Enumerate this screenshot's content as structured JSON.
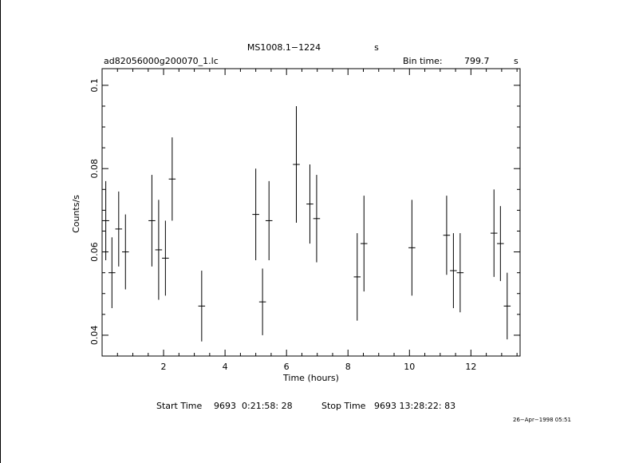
{
  "header": {
    "target": "MS1008.1−1224",
    "target_unit": "s",
    "filename": "ad82056000g200070_1.lc",
    "bin_label": "Bin time:",
    "bin_value": "799.7",
    "bin_unit": "s"
  },
  "footer": {
    "start_label": "Start Time",
    "start_value": "9693  0:21:58: 28",
    "stop_label": "Stop Time",
    "stop_value": "9693 13:28:22: 83",
    "timestamp": "26−Apr−1998 05:51"
  },
  "chart_data": {
    "type": "scatter",
    "xlabel": "Time (hours)",
    "ylabel": "Counts/s",
    "xlim": [
      0.0,
      13.6
    ],
    "ylim": [
      0.035,
      0.104
    ],
    "xticks": [
      2,
      4,
      6,
      8,
      10,
      12
    ],
    "xtick_labels": [
      "2",
      "4",
      "6",
      "8",
      "10",
      "12"
    ],
    "yticks": [
      0.04,
      0.06,
      0.08,
      0.1
    ],
    "ytick_labels": [
      "0.04",
      "0.06",
      "0.08",
      "0.1"
    ],
    "x_halfwidth_hours": 0.111,
    "grid": false,
    "points": [
      {
        "x": 0.12,
        "y": 0.0675,
        "err": 0.0095
      },
      {
        "x": 0.32,
        "y": 0.055,
        "err": 0.0085
      },
      {
        "x": 0.54,
        "y": 0.0655,
        "err": 0.009
      },
      {
        "x": 0.76,
        "y": 0.06,
        "err": 0.009
      },
      {
        "x": 1.62,
        "y": 0.0675,
        "err": 0.011
      },
      {
        "x": 1.84,
        "y": 0.0605,
        "err": 0.012
      },
      {
        "x": 2.06,
        "y": 0.0585,
        "err": 0.009
      },
      {
        "x": 2.28,
        "y": 0.0775,
        "err": 0.01
      },
      {
        "x": 3.24,
        "y": 0.047,
        "err": 0.0085
      },
      {
        "x": 5.0,
        "y": 0.069,
        "err": 0.011
      },
      {
        "x": 5.22,
        "y": 0.048,
        "err": 0.008
      },
      {
        "x": 5.43,
        "y": 0.0675,
        "err": 0.0095
      },
      {
        "x": 6.32,
        "y": 0.081,
        "err": 0.014
      },
      {
        "x": 6.76,
        "y": 0.0715,
        "err": 0.0095
      },
      {
        "x": 6.98,
        "y": 0.068,
        "err": 0.0105
      },
      {
        "x": 8.3,
        "y": 0.054,
        "err": 0.0105
      },
      {
        "x": 8.52,
        "y": 0.062,
        "err": 0.0115
      },
      {
        "x": 10.08,
        "y": 0.061,
        "err": 0.0115
      },
      {
        "x": 11.21,
        "y": 0.064,
        "err": 0.0095
      },
      {
        "x": 11.43,
        "y": 0.0555,
        "err": 0.009
      },
      {
        "x": 11.65,
        "y": 0.055,
        "err": 0.0095
      },
      {
        "x": 12.75,
        "y": 0.0645,
        "err": 0.0105
      },
      {
        "x": 12.96,
        "y": 0.062,
        "err": 0.009
      },
      {
        "x": 13.18,
        "y": 0.047,
        "err": 0.008
      }
    ]
  }
}
